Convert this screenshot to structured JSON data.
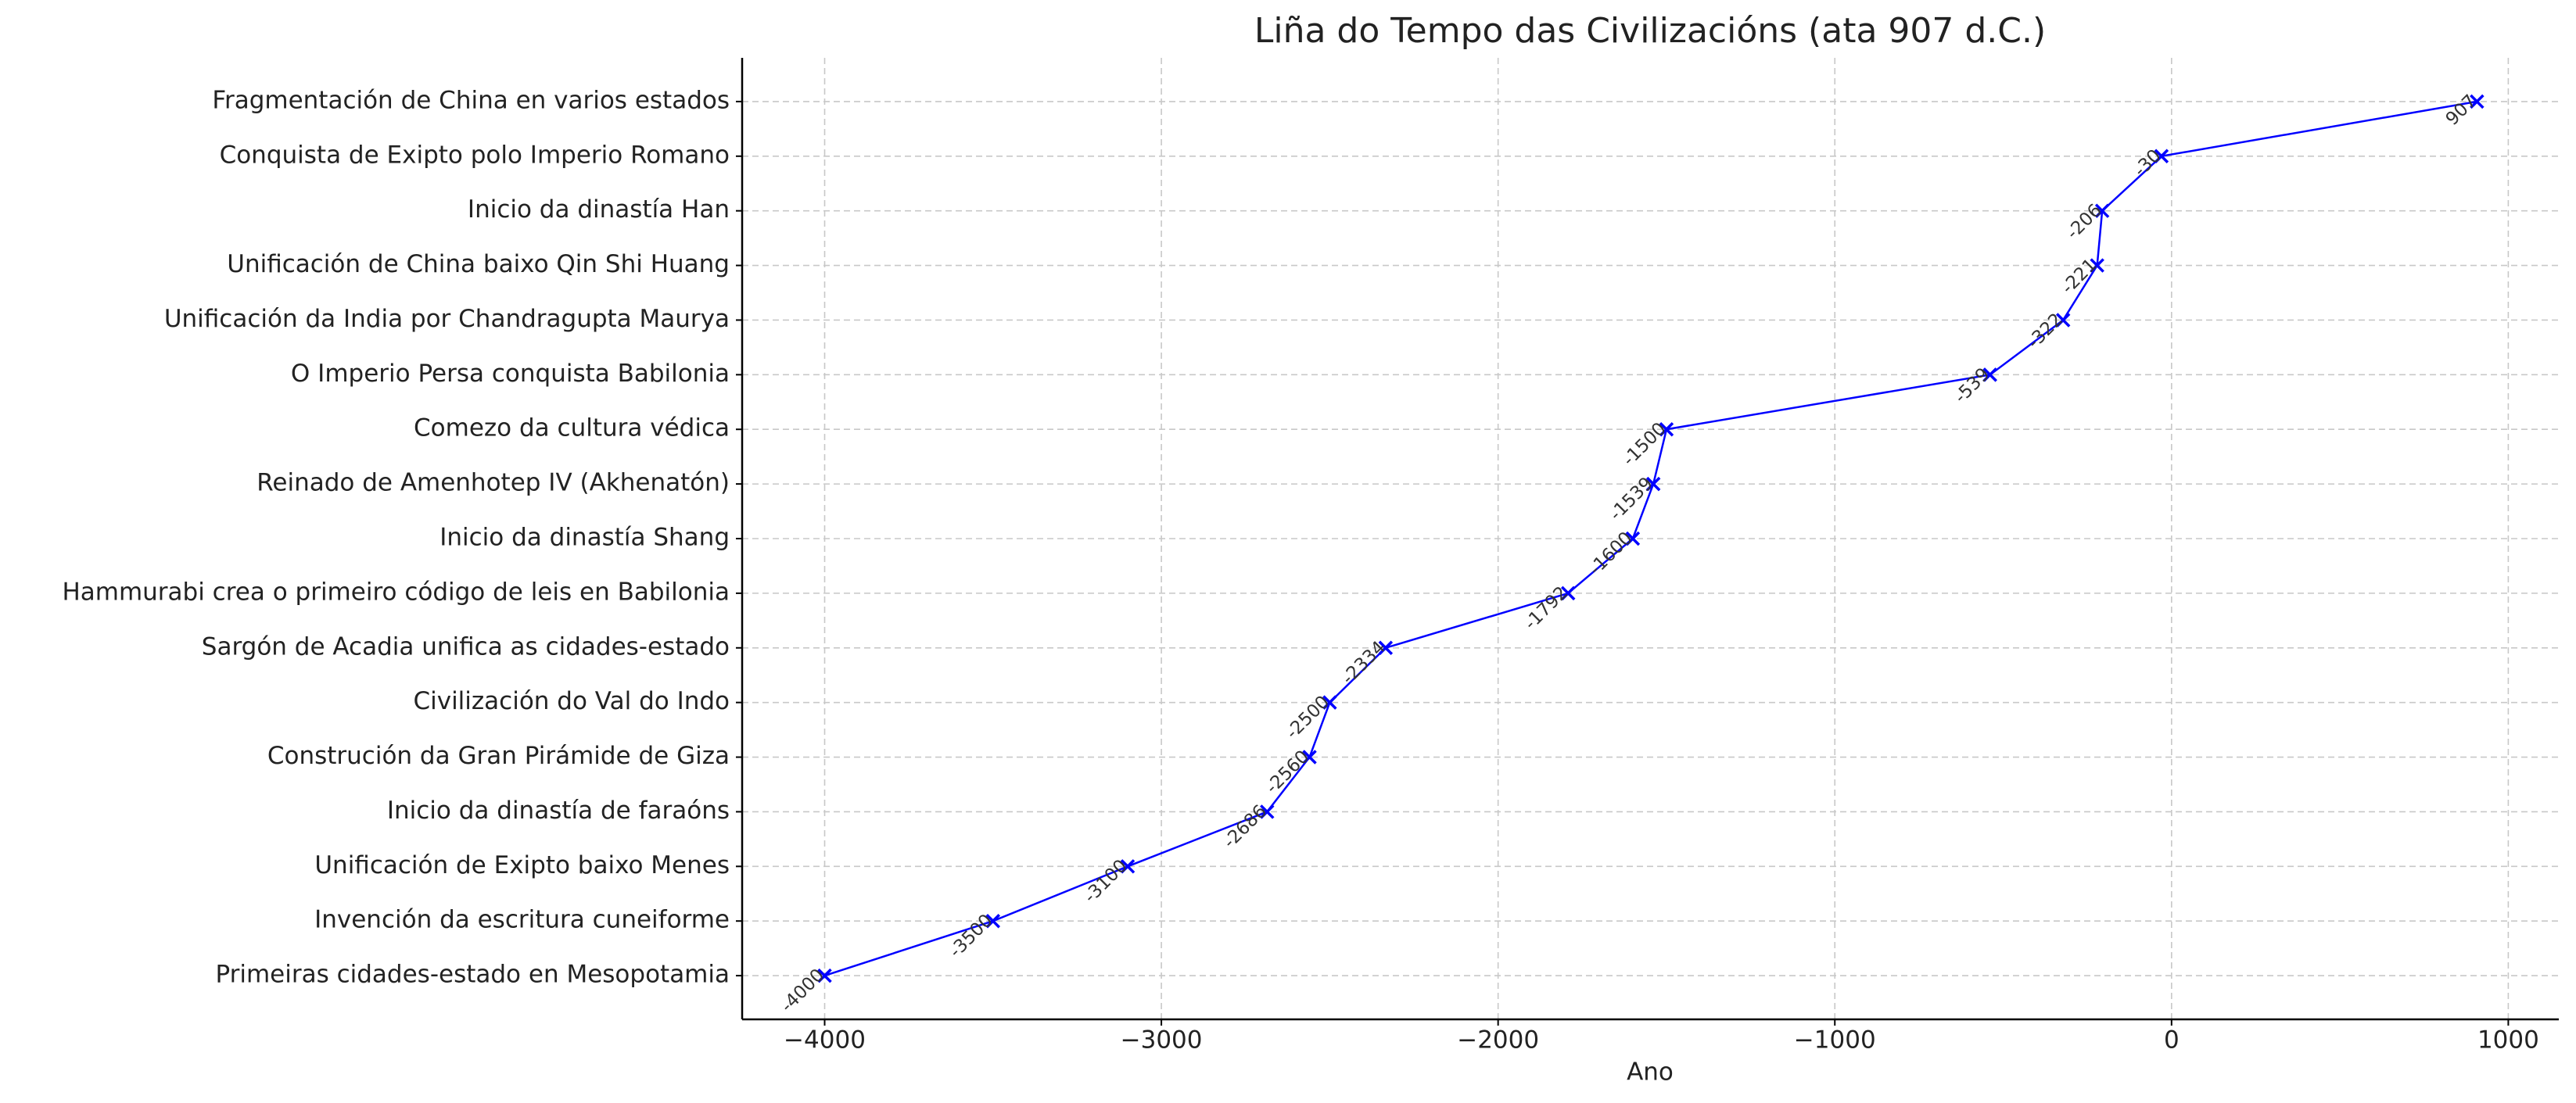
{
  "chart_data": {
    "type": "line",
    "orientation": "horizontal",
    "title": "Liña do Tempo das Civilizacións (ata 907 d.C.)",
    "x_label": "Ano",
    "categories": [
      "Primeiras cidades-estado en Mesopotamia",
      "Invención da escritura cuneiforme",
      "Unificación de Exipto baixo Menes",
      "Inicio da dinastía de faraóns",
      "Construción da Gran Pirámide de Giza",
      "Civilización do Val do Indo",
      "Sargón de Acadia unifica as cidades-estado",
      "Hammurabi crea o primeiro código de leis en Babilonia",
      "Inicio da dinastía Shang",
      "Reinado de Amenhotep IV (Akhenatón)",
      "Comezo da cultura védica",
      "O Imperio Persa conquista Babilonia",
      "Unificación da India por Chandragupta Maurya",
      "Unificación de China baixo Qin Shi Huang",
      "Inicio da dinastía Han",
      "Conquista de Exipto polo Imperio Romano",
      "Fragmentación de China en varios estados"
    ],
    "values": [
      -4000,
      -3500,
      -3100,
      -2686,
      -2560,
      -2500,
      -2334,
      -1792,
      -1600,
      -1539,
      -1500,
      -539,
      -322,
      -221,
      -206,
      -30,
      907
    ],
    "color": "#0000ff",
    "xlim": [
      -4245,
      1150
    ],
    "xticks": [
      {
        "value": -4000,
        "label": "−4000"
      },
      {
        "value": -3000,
        "label": "−3000"
      },
      {
        "value": -2000,
        "label": "−2000"
      },
      {
        "value": -1000,
        "label": "−1000"
      },
      0,
      1000
    ],
    "grid": true
  }
}
